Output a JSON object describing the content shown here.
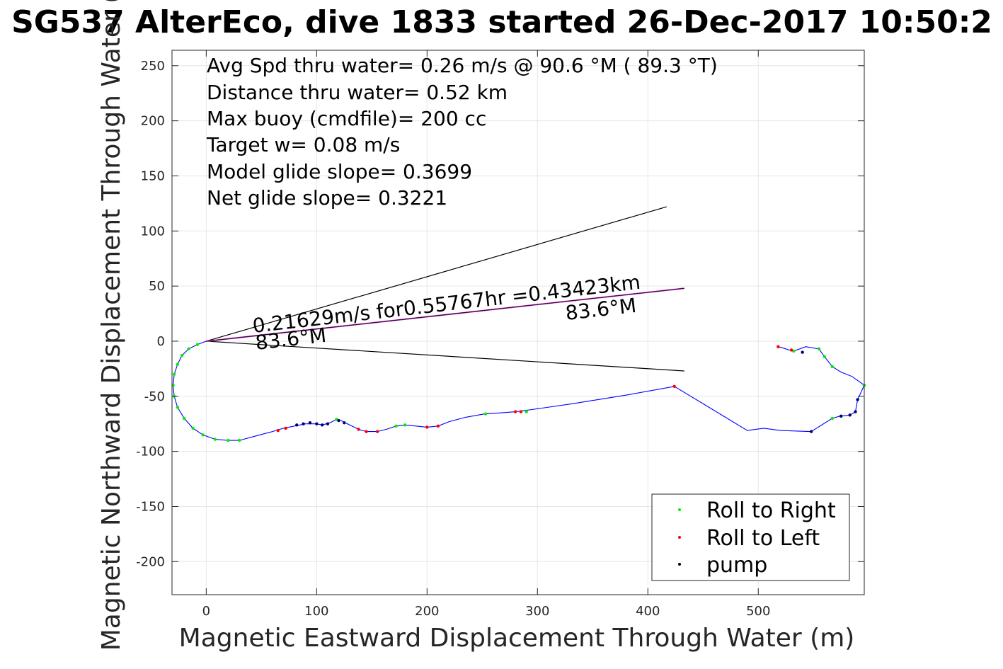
{
  "chart_data": {
    "type": "line",
    "title": "SG537 AlterEco, dive 1833 started 26-Dec-2017 10:50:2",
    "xlabel": "Magnetic Eastward Displacement Through Water (m)",
    "ylabel": "Magnetic Northward Displacement Through Water (",
    "xlim": [
      -31,
      596
    ],
    "ylim": [
      -230,
      264
    ],
    "xticks": [
      0,
      100,
      200,
      300,
      400,
      500
    ],
    "yticks": [
      -200,
      -150,
      -100,
      -50,
      0,
      50,
      100,
      150,
      200,
      250
    ],
    "grid": true,
    "annotations": [
      "Avg Spd thru water=  0.26 m/s @  90.6 °M ( 89.3 °T)",
      "Distance thru water=  0.52 km",
      "Max buoy (cmdfile)= 200 cc",
      "Target w= 0.08 m/s",
      "Model glide slope= 0.3699",
      "Net glide slope= 0.3221"
    ],
    "current_vector": {
      "label": "0.21629m/s for0.55767hr =0.43423km",
      "heading_label": "83.6°M",
      "heading_label_2": "83.6°M",
      "from": [
        0,
        0
      ],
      "to": [
        433,
        48
      ],
      "color": "#cc33cc"
    },
    "cone_lines": [
      {
        "from": [
          0,
          0
        ],
        "to": [
          417,
          122
        ]
      },
      {
        "from": [
          0,
          0
        ],
        "to": [
          433,
          -27
        ]
      }
    ],
    "series": [
      {
        "name": "track",
        "color": "#0000ff",
        "points": [
          [
            0,
            0
          ],
          [
            -8,
            -3
          ],
          [
            -16,
            -7
          ],
          [
            -22,
            -13
          ],
          [
            -26,
            -21
          ],
          [
            -29,
            -30
          ],
          [
            -30,
            -40
          ],
          [
            -29,
            -50
          ],
          [
            -26,
            -60
          ],
          [
            -20,
            -70
          ],
          [
            -12,
            -79
          ],
          [
            -3,
            -85
          ],
          [
            8,
            -89
          ],
          [
            20,
            -90
          ],
          [
            30,
            -90
          ],
          [
            45,
            -86
          ],
          [
            60,
            -82
          ],
          [
            70,
            -79
          ],
          [
            80,
            -77
          ],
          [
            90,
            -75
          ],
          [
            100,
            -75
          ],
          [
            105,
            -76
          ],
          [
            112,
            -74
          ],
          [
            118,
            -71
          ],
          [
            122,
            -72
          ],
          [
            128,
            -75
          ],
          [
            138,
            -80
          ],
          [
            145,
            -82
          ],
          [
            155,
            -82
          ],
          [
            163,
            -80
          ],
          [
            172,
            -77
          ],
          [
            180,
            -76
          ],
          [
            190,
            -77
          ],
          [
            200,
            -78
          ],
          [
            210,
            -77
          ],
          [
            220,
            -73
          ],
          [
            235,
            -69
          ],
          [
            252,
            -66
          ],
          [
            268,
            -65
          ],
          [
            280,
            -64
          ],
          [
            295,
            -62
          ],
          [
            330,
            -57
          ],
          [
            380,
            -49
          ],
          [
            424,
            -41
          ],
          [
            457,
            -61
          ],
          [
            490,
            -81
          ],
          [
            505,
            -79
          ],
          [
            520,
            -81
          ],
          [
            548,
            -82
          ],
          [
            567,
            -70
          ],
          [
            574,
            -68
          ],
          [
            583,
            -67
          ],
          [
            588,
            -64
          ],
          [
            590,
            -53
          ],
          [
            596,
            -40
          ],
          [
            585,
            -32
          ],
          [
            575,
            -28
          ],
          [
            567,
            -23
          ],
          [
            560,
            -14
          ],
          [
            555,
            -7
          ],
          [
            543,
            -5
          ],
          [
            532,
            -9
          ],
          [
            528,
            -8
          ],
          [
            522,
            -6
          ],
          [
            518,
            -5
          ]
        ]
      },
      {
        "name": "Roll to Right",
        "color": "#00ee00",
        "points": [
          [
            -8,
            -3
          ],
          [
            -16,
            -7
          ],
          [
            -22,
            -13
          ],
          [
            -26,
            -21
          ],
          [
            -29,
            -30
          ],
          [
            -30,
            -40
          ],
          [
            -29,
            -50
          ],
          [
            -26,
            -60
          ],
          [
            -20,
            -70
          ],
          [
            -12,
            -79
          ],
          [
            -3,
            -85
          ],
          [
            8,
            -89
          ],
          [
            20,
            -90
          ],
          [
            30,
            -90
          ],
          [
            118,
            -71
          ],
          [
            172,
            -77
          ],
          [
            180,
            -76
          ],
          [
            253,
            -66
          ],
          [
            290,
            -64
          ],
          [
            567,
            -70
          ],
          [
            575,
            -68
          ],
          [
            555,
            -7
          ],
          [
            560,
            -14
          ],
          [
            567,
            -23
          ],
          [
            596,
            -40
          ],
          [
            532,
            -9
          ]
        ]
      },
      {
        "name": "Roll to Left",
        "color": "#ff0000",
        "points": [
          [
            65,
            -81
          ],
          [
            72,
            -79
          ],
          [
            138,
            -80
          ],
          [
            145,
            -82
          ],
          [
            155,
            -82
          ],
          [
            200,
            -78
          ],
          [
            210,
            -77
          ],
          [
            280,
            -64
          ],
          [
            285,
            -64
          ],
          [
            424,
            -41
          ],
          [
            518,
            -5
          ],
          [
            530,
            -8
          ]
        ]
      },
      {
        "name": "pump",
        "color": "#00007a",
        "points": [
          [
            82,
            -76
          ],
          [
            88,
            -75
          ],
          [
            94,
            -74
          ],
          [
            100,
            -75
          ],
          [
            105,
            -76
          ],
          [
            110,
            -75
          ],
          [
            120,
            -72
          ],
          [
            125,
            -74
          ],
          [
            548,
            -82
          ],
          [
            575,
            -68
          ],
          [
            583,
            -67
          ],
          [
            590,
            -53
          ],
          [
            588,
            -64
          ],
          [
            540,
            -10
          ]
        ]
      }
    ],
    "legend": {
      "placement": "bottom-right",
      "entries": [
        {
          "label": "Roll to Right",
          "color": "#00ee00"
        },
        {
          "label": "Roll to Left",
          "color": "#ff0000"
        },
        {
          "label": "pump",
          "color": "#000000"
        }
      ]
    }
  }
}
